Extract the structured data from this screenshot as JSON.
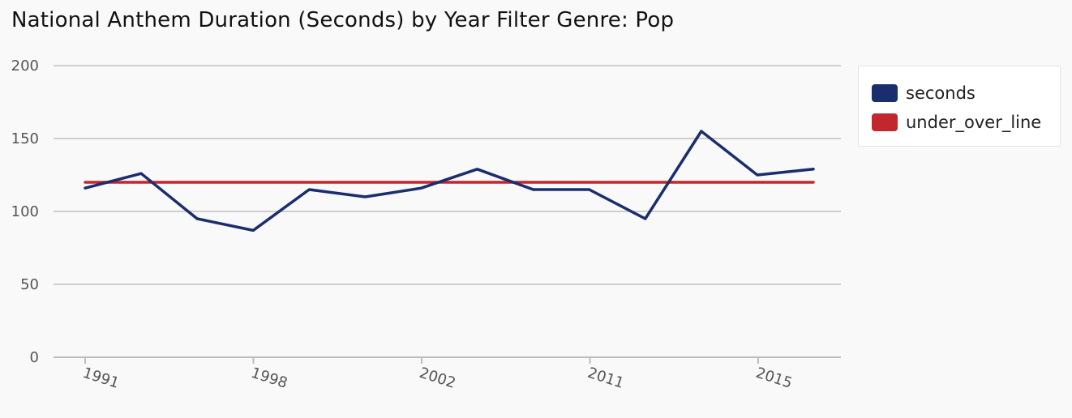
{
  "title": "National Anthem Duration (Seconds) by Year Filter Genre: Pop",
  "chart_data": {
    "type": "line",
    "title": "National Anthem Duration (Seconds) by Year Filter Genre: Pop",
    "xlabel": "",
    "ylabel": "",
    "ylim": [
      0,
      200
    ],
    "yticks": [
      "0",
      "50",
      "100",
      "150",
      "200"
    ],
    "x_tick_labels": [
      "1991",
      "1998",
      "2002",
      "2011",
      "2015"
    ],
    "grid": true,
    "legend_position": "right",
    "series": [
      {
        "name": "seconds",
        "color": "#1a2e6e",
        "values": [
          116,
          126,
          95,
          87,
          115,
          110,
          116,
          129,
          115,
          115,
          95,
          155,
          125,
          129
        ]
      },
      {
        "name": "under_over_line",
        "color": "#c1272d",
        "values": [
          120,
          120,
          120,
          120,
          120,
          120,
          120,
          120,
          120,
          120,
          120,
          120,
          120,
          120
        ]
      }
    ]
  }
}
